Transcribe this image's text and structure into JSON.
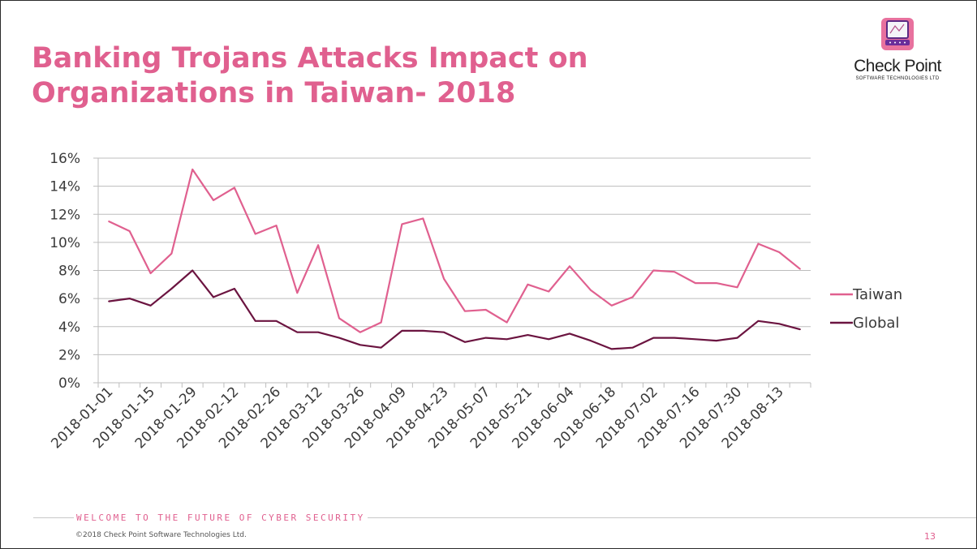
{
  "slide": {
    "title": "Banking Trojans Attacks Impact on Organizations in Taiwan- 2018",
    "footer_tagline": "WELCOME TO THE FUTURE OF CYBER SECURITY",
    "copyright": "©2018 Check Point Software Technologies Ltd.",
    "page_number": "13"
  },
  "logo": {
    "name": "Check Point",
    "subtitle": "SOFTWARE TECHNOLOGIES LTD",
    "icon": "computer-screen-icon"
  },
  "colors": {
    "title": "#e0608f",
    "taiwan": "#e0608f",
    "global": "#6b1440",
    "grid": "#bdbdbd"
  },
  "chart_data": {
    "type": "line",
    "ylim": [
      0,
      16
    ],
    "y_ticks": [
      "0%",
      "2%",
      "4%",
      "6%",
      "8%",
      "10%",
      "12%",
      "14%",
      "16%"
    ],
    "grid": true,
    "legend_position": "right",
    "x_labels": [
      "2018-01-01",
      "2018-01-15",
      "2018-01-29",
      "2018-02-12",
      "2018-02-26",
      "2018-03-12",
      "2018-03-26",
      "2018-04-09",
      "2018-04-23",
      "2018-05-07",
      "2018-05-21",
      "2018-06-04",
      "2018-06-18",
      "2018-07-02",
      "2018-07-16",
      "2018-07-30",
      "2018-08-13"
    ],
    "x": [
      "2018-01-01",
      "2018-01-08",
      "2018-01-15",
      "2018-01-22",
      "2018-01-29",
      "2018-02-05",
      "2018-02-12",
      "2018-02-19",
      "2018-02-26",
      "2018-03-05",
      "2018-03-12",
      "2018-03-19",
      "2018-03-26",
      "2018-04-02",
      "2018-04-09",
      "2018-04-16",
      "2018-04-23",
      "2018-04-30",
      "2018-05-07",
      "2018-05-14",
      "2018-05-21",
      "2018-05-28",
      "2018-06-04",
      "2018-06-11",
      "2018-06-18",
      "2018-06-25",
      "2018-07-02",
      "2018-07-09",
      "2018-07-16",
      "2018-07-23",
      "2018-07-30",
      "2018-08-06",
      "2018-08-13",
      "2018-08-20"
    ],
    "series": [
      {
        "name": "Taiwan",
        "values": [
          11.5,
          10.8,
          7.8,
          9.2,
          15.2,
          13.0,
          13.9,
          10.6,
          11.2,
          6.4,
          9.8,
          4.6,
          3.6,
          4.3,
          11.3,
          11.7,
          7.4,
          5.1,
          5.2,
          4.3,
          7.0,
          6.5,
          8.3,
          6.6,
          5.5,
          6.1,
          8.0,
          7.9,
          7.1,
          7.1,
          6.8,
          9.9,
          9.3,
          8.1
        ]
      },
      {
        "name": "Global",
        "values": [
          5.8,
          6.0,
          5.5,
          6.7,
          8.0,
          6.1,
          6.7,
          4.4,
          4.4,
          3.6,
          3.6,
          3.2,
          2.7,
          2.5,
          3.7,
          3.7,
          3.6,
          2.9,
          3.2,
          3.1,
          3.4,
          3.1,
          3.5,
          3.0,
          2.4,
          2.5,
          3.2,
          3.2,
          3.1,
          3.0,
          3.2,
          4.4,
          4.2,
          3.8
        ]
      }
    ]
  }
}
